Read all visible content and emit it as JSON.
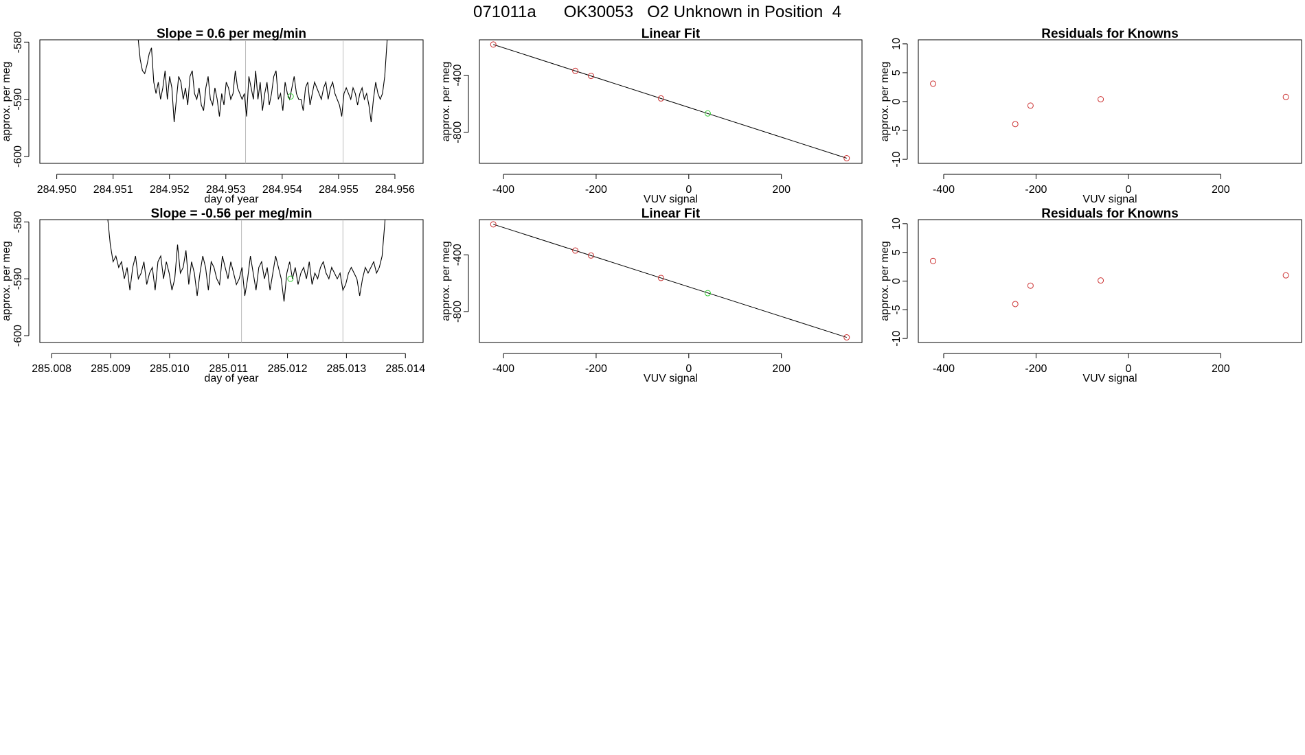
{
  "figure": {
    "main_title": "071011a      OK30053   O2 Unknown in Position  4"
  },
  "colors": {
    "line": "#000000",
    "known_point": "#cc3333",
    "unknown_point": "#33cc33",
    "vline": "#bbbbbb"
  },
  "chart_data": [
    {
      "id": "ts1",
      "type": "line",
      "title": "Slope =  0.6  per meg/min",
      "xlabel": "day of year",
      "ylabel": "approx. per meg",
      "xlim": [
        284.9497,
        284.9565
      ],
      "ylim": [
        -601.2,
        -579.6
      ],
      "xticks": [
        284.95,
        284.951,
        284.952,
        284.953,
        284.954,
        284.955,
        284.956
      ],
      "xtick_labels": [
        "284.950",
        "284.951",
        "284.952",
        "284.953",
        "284.954",
        "284.955",
        "284.956"
      ],
      "yticks": [
        -600,
        -590,
        -580
      ],
      "ytick_labels": [
        "-600",
        "-590",
        "-580"
      ],
      "vlines": [
        284.95335,
        284.95508
      ],
      "green_point": [
        284.95415,
        -589.5
      ],
      "series": [
        {
          "name": "per meg",
          "x_start": 284.9514,
          "x_end": 284.9559,
          "values": [
            -575,
            -579,
            -583,
            -585,
            -585.5,
            -584,
            -582,
            -581,
            -587,
            -589,
            -587,
            -590,
            -588,
            -585,
            -590,
            -586,
            -588,
            -594,
            -590,
            -586,
            -587,
            -590,
            -588,
            -591,
            -586,
            -585,
            -589,
            -590,
            -588,
            -591,
            -592,
            -588,
            -586,
            -590,
            -591,
            -588,
            -590,
            -593,
            -589,
            -591,
            -587,
            -588,
            -590,
            -589,
            -585,
            -588,
            -589,
            -590,
            -589,
            -593,
            -586,
            -588,
            -590,
            -585,
            -590,
            -587,
            -592,
            -589,
            -587,
            -591,
            -589,
            -586,
            -585,
            -590,
            -589,
            -592,
            -587,
            -589,
            -590,
            -588,
            -586,
            -589,
            -590,
            -590,
            -592,
            -588,
            -587,
            -591,
            -589,
            -587,
            -588,
            -589,
            -590,
            -588,
            -587,
            -590,
            -588,
            -587,
            -589,
            -590,
            -591,
            -593,
            -589,
            -588,
            -589,
            -590,
            -588,
            -589,
            -591,
            -589,
            -588,
            -590,
            -589,
            -591,
            -594,
            -590,
            -587,
            -589,
            -590,
            -589,
            -586,
            -580,
            -570
          ]
        }
      ]
    },
    {
      "id": "fit1",
      "type": "scatter",
      "title": "Linear Fit",
      "xlabel": "VUV signal",
      "ylabel": "approx. per meg",
      "xlim": [
        -452,
        374
      ],
      "ylim": [
        -1018,
        -152
      ],
      "xticks": [
        -400,
        -200,
        0,
        200
      ],
      "xtick_labels": [
        "-400",
        "-200",
        "0",
        "200"
      ],
      "yticks": [
        -800,
        -400
      ],
      "ytick_labels": [
        "-800",
        "-400"
      ],
      "fit_line": [
        [
          -422,
          -185
        ],
        [
          341,
          -982
        ]
      ],
      "known_points": [
        [
          -422,
          -185
        ],
        [
          -245,
          -370
        ],
        [
          -211,
          -405
        ],
        [
          -60,
          -563
        ],
        [
          341,
          -982
        ]
      ],
      "unknown_points": [
        [
          41,
          -668
        ]
      ]
    },
    {
      "id": "res1",
      "type": "scatter",
      "title": "Residuals for Knowns",
      "xlabel": "VUV signal",
      "ylabel": "approx. per meg",
      "xlim": [
        -455,
        375
      ],
      "ylim": [
        -10.7,
        10.7
      ],
      "xticks": [
        -400,
        -200,
        0,
        200
      ],
      "xtick_labels": [
        "-400",
        "-200",
        "0",
        "200"
      ],
      "yticks": [
        -10,
        -5,
        0,
        5,
        10
      ],
      "ytick_labels": [
        "-10",
        "-5",
        "0",
        "5",
        "10"
      ],
      "known_points": [
        [
          -423,
          3.1
        ],
        [
          -245,
          -3.9
        ],
        [
          -212,
          -0.7
        ],
        [
          -60,
          0.4
        ],
        [
          341,
          0.8
        ]
      ]
    },
    {
      "id": "ts2",
      "type": "line",
      "title": "Slope =  -0.56  per meg/min",
      "xlabel": "day of year",
      "ylabel": "approx. per meg",
      "xlim": [
        285.0078,
        285.0143
      ],
      "ylim": [
        -601.2,
        -579.6
      ],
      "xticks": [
        285.008,
        285.009,
        285.01,
        285.011,
        285.012,
        285.013,
        285.014
      ],
      "xtick_labels": [
        "285.008",
        "285.009",
        "285.010",
        "285.011",
        "285.012",
        "285.013",
        "285.014"
      ],
      "yticks": [
        -600,
        -590,
        -580
      ],
      "ytick_labels": [
        "-600",
        "-590",
        "-580"
      ],
      "vlines": [
        285.01122,
        285.01294
      ],
      "green_point": [
        285.01205,
        -590
      ],
      "series": [
        {
          "name": "per meg",
          "x_start": 285.0089,
          "x_end": 285.0137,
          "values": [
            -575,
            -579,
            -584,
            -587,
            -586,
            -588,
            -587,
            -590,
            -588,
            -592,
            -588,
            -586,
            -590,
            -589,
            -587,
            -591,
            -589,
            -588,
            -592,
            -587,
            -586,
            -590,
            -587,
            -589,
            -592,
            -590,
            -584,
            -589,
            -588,
            -585,
            -591,
            -587,
            -589,
            -593,
            -589,
            -586,
            -588,
            -592,
            -587,
            -588,
            -590,
            -591,
            -586,
            -588,
            -590,
            -587,
            -589,
            -591,
            -590,
            -588,
            -593,
            -590,
            -586,
            -589,
            -592,
            -588,
            -587,
            -590,
            -588,
            -592,
            -589,
            -586,
            -588,
            -590,
            -594,
            -589,
            -587,
            -590,
            -588,
            -591,
            -589,
            -588,
            -590,
            -587,
            -591,
            -589,
            -590,
            -588,
            -587,
            -589,
            -590,
            -588,
            -589,
            -590,
            -589,
            -592,
            -591,
            -589,
            -588,
            -589,
            -590,
            -593,
            -590,
            -588,
            -589,
            -588,
            -587,
            -589,
            -588,
            -586,
            -580,
            -570
          ]
        }
      ]
    },
    {
      "id": "fit2",
      "type": "scatter",
      "title": "Linear Fit",
      "xlabel": "VUV signal",
      "ylabel": "approx. per meg",
      "xlim": [
        -452,
        374
      ],
      "ylim": [
        -1018,
        -152
      ],
      "xticks": [
        -400,
        -200,
        0,
        200
      ],
      "xtick_labels": [
        "-400",
        "-200",
        "0",
        "200"
      ],
      "yticks": [
        -800,
        -400
      ],
      "ytick_labels": [
        "-800",
        "-400"
      ],
      "fit_line": [
        [
          -422,
          -185
        ],
        [
          341,
          -982
        ]
      ],
      "known_points": [
        [
          -422,
          -185
        ],
        [
          -245,
          -370
        ],
        [
          -211,
          -405
        ],
        [
          -60,
          -563
        ],
        [
          341,
          -982
        ]
      ],
      "unknown_points": [
        [
          41,
          -670
        ]
      ]
    },
    {
      "id": "res2",
      "type": "scatter",
      "title": "Residuals for Knowns",
      "xlabel": "VUV signal",
      "ylabel": "approx. per meg",
      "xlim": [
        -455,
        375
      ],
      "ylim": [
        -10.7,
        10.7
      ],
      "xticks": [
        -400,
        -200,
        0,
        200
      ],
      "xtick_labels": [
        "-400",
        "-200",
        "0",
        "200"
      ],
      "yticks": [
        -10,
        -5,
        0,
        5,
        10
      ],
      "ytick_labels": [
        "-10",
        "-5",
        "0",
        "5",
        "10"
      ],
      "known_points": [
        [
          -423,
          3.5
        ],
        [
          -245,
          -4.0
        ],
        [
          -212,
          -0.8
        ],
        [
          -60,
          0.1
        ],
        [
          341,
          1.0
        ]
      ]
    }
  ]
}
